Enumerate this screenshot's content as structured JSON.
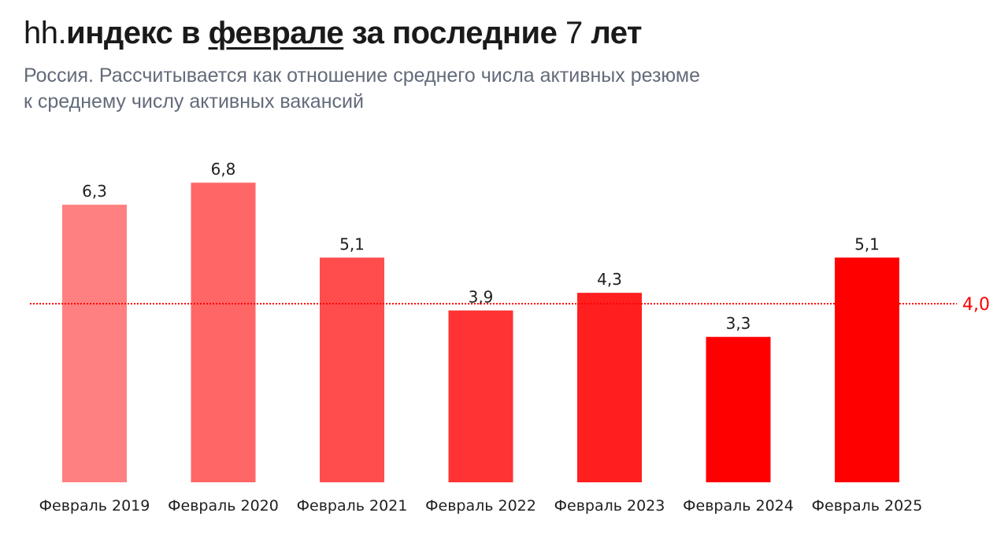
{
  "header": {
    "title_prefix": "hh.",
    "title_word1": "индекс в ",
    "title_underlined": "феврале",
    "title_word2": " за последние ",
    "title_number": "7",
    "title_word3": " лет",
    "subtitle_line1": "Россия. Рассчитывается как отношение среднего числа активных резюме",
    "subtitle_line2": "к среднему числу активных вакансий"
  },
  "chart_data": {
    "type": "bar",
    "title": "hh.индекс в феврале за последние 7 лет",
    "subtitle": "Россия. Рассчитывается как отношение среднего числа активных резюме к среднему числу активных вакансий",
    "categories": [
      "Февраль 2019",
      "Февраль 2020",
      "Февраль 2021",
      "Февраль 2022",
      "Февраль 2023",
      "Февраль 2024",
      "Февраль 2025"
    ],
    "values": [
      6.3,
      6.8,
      5.1,
      3.9,
      4.3,
      3.3,
      5.1
    ],
    "value_labels": [
      "6,3",
      "6,8",
      "5,1",
      "3,9",
      "4,3",
      "3,3",
      "5,1"
    ],
    "bar_colors": [
      "#ff8080",
      "#ff6666",
      "#ff4d4d",
      "#ff3333",
      "#ff1f1f",
      "#ff0000",
      "#ff0000"
    ],
    "reference_line": {
      "value": 4.0,
      "label": "4,0",
      "color": "#ff0000",
      "style": "dotted"
    },
    "xlabel": "",
    "ylabel": "",
    "ylim": [
      0,
      6.8
    ],
    "grid": false,
    "legend": "none"
  }
}
